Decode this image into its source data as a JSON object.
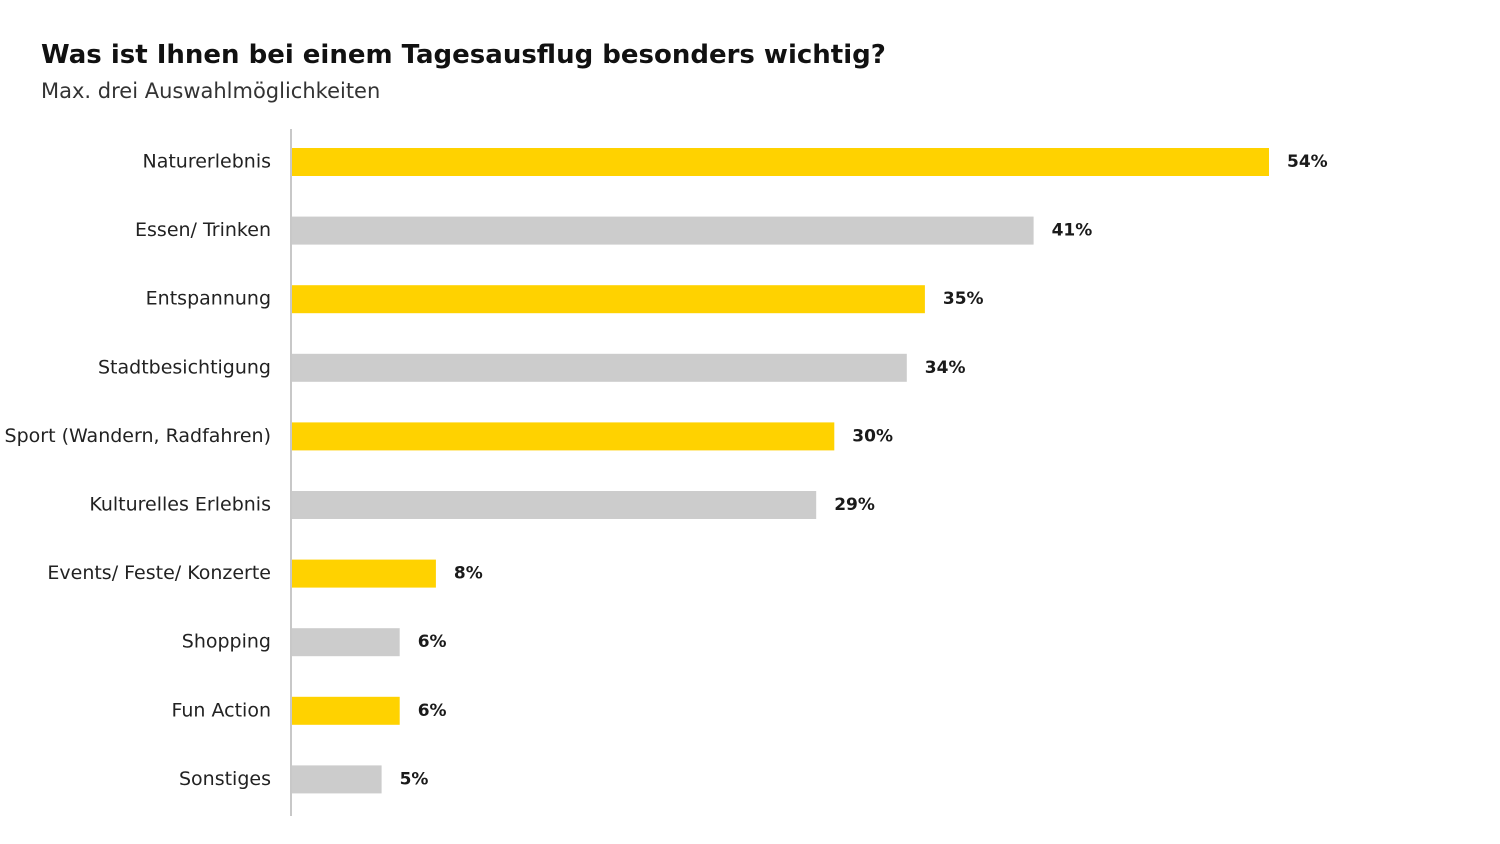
{
  "header": {
    "title": "Was ist Ihnen bei einem Tagesausflug besonders wichtig?",
    "subtitle": "Max. drei Auswahlmöglichkeiten"
  },
  "colors": {
    "highlight": "#FFD200",
    "neutral": "#CCCCCC",
    "axis": "#C8C8C8"
  },
  "chart_data": {
    "type": "bar",
    "orientation": "horizontal",
    "title": "Was ist Ihnen bei einem Tagesausflug besonders wichtig?",
    "subtitle": "Max. drei Auswahlmöglichkeiten",
    "xlabel": "",
    "ylabel": "",
    "unit": "%",
    "xlim": [
      0,
      54
    ],
    "grid": false,
    "categories": [
      "Naturerlebnis",
      "Essen/ Trinken",
      "Entspannung",
      "Stadtbesichtigung",
      "Sport (Wandern, Radfahren)",
      "Kulturelles Erlebnis",
      "Events/ Feste/ Konzerte",
      "Shopping",
      "Fun Action",
      "Sonstiges"
    ],
    "values": [
      54,
      41,
      35,
      34,
      30,
      29,
      8,
      6,
      6,
      5
    ],
    "value_labels": [
      "54%",
      "41%",
      "35%",
      "34%",
      "30%",
      "29%",
      "8%",
      "6%",
      "6%",
      "5%"
    ],
    "bar_colors": [
      "#FFD200",
      "#CCCCCC",
      "#FFD200",
      "#CCCCCC",
      "#FFD200",
      "#CCCCCC",
      "#FFD200",
      "#CCCCCC",
      "#FFD200",
      "#CCCCCC"
    ]
  }
}
